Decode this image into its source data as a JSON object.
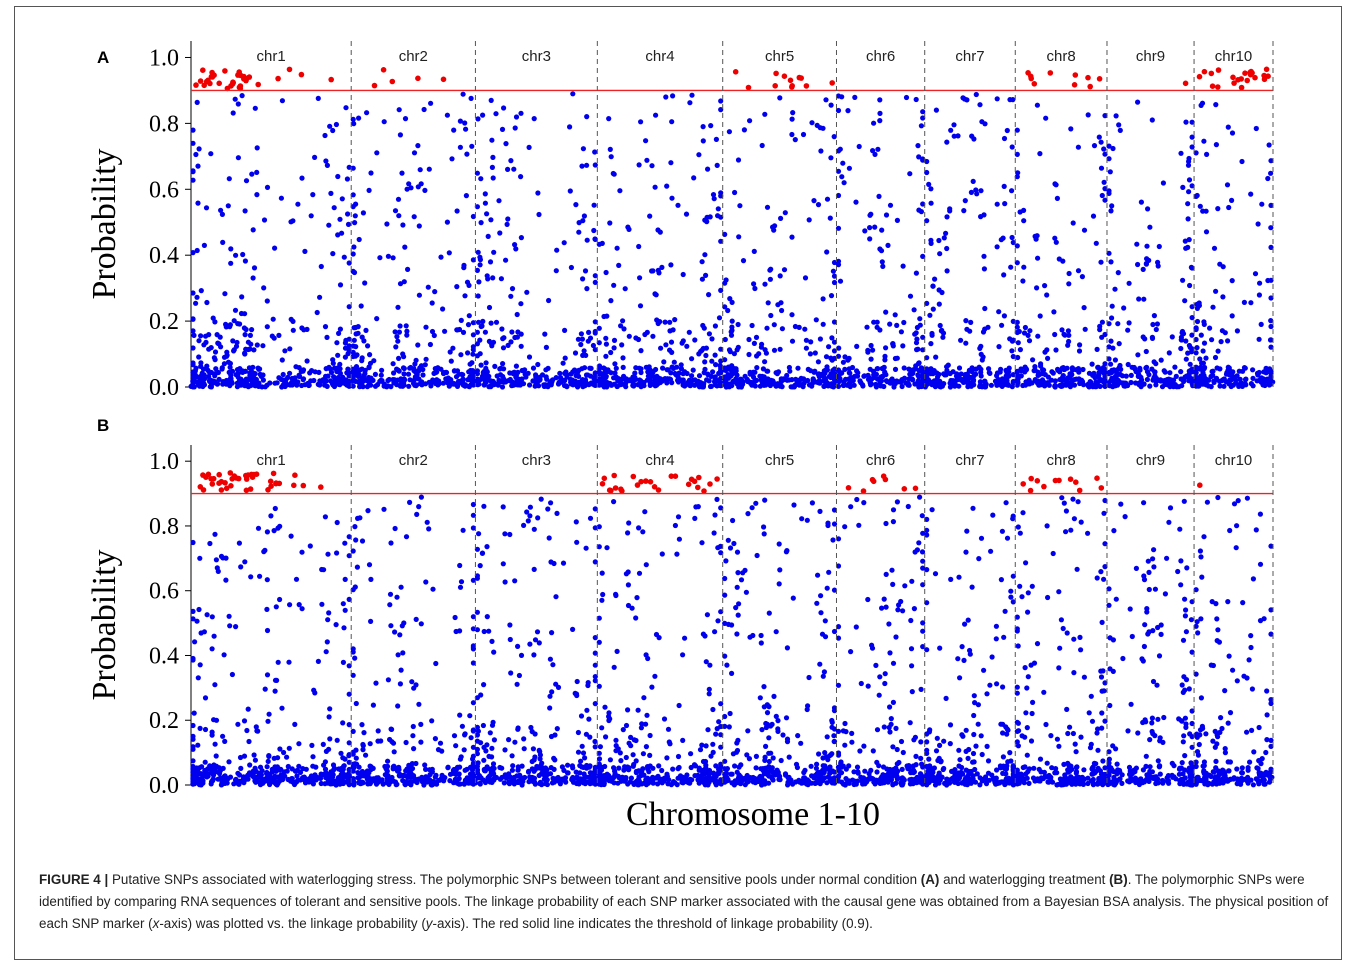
{
  "chart_data": [
    {
      "type": "scatter",
      "panel": "A",
      "xlabel": "",
      "ylabel": "Probability",
      "ylim": [
        0.0,
        1.0
      ],
      "yticks": [
        "0.0",
        "0.2",
        "0.4",
        "0.6",
        "0.8",
        "1.0"
      ],
      "threshold": 0.9,
      "chromosomes": [
        "chr1",
        "chr2",
        "chr3",
        "chr4",
        "chr5",
        "chr6",
        "chr7",
        "chr8",
        "chr9",
        "chr10"
      ],
      "chromosome_relative_lengths": [
        1.38,
        1.07,
        1.05,
        1.08,
        0.98,
        0.76,
        0.78,
        0.79,
        0.75,
        0.68
      ],
      "red_points_above_threshold": {
        "chr1": 35,
        "chr2": 5,
        "chr3": 0,
        "chr4": 0,
        "chr5": 12,
        "chr6": 0,
        "chr7": 0,
        "chr8": 10,
        "chr9": 1,
        "chr10": 22
      },
      "series": [
        {
          "name": "",
          "color": "#0000ee",
          "description_values": "probability < 0.9, dense near 0"
        },
        {
          "name": "",
          "color": "#ee0000",
          "description_values": "probability >= 0.9"
        }
      ]
    },
    {
      "type": "scatter",
      "panel": "B",
      "xlabel": "Chromosome 1-10",
      "ylabel": "Probability",
      "ylim": [
        0.0,
        1.0
      ],
      "yticks": [
        "0.0",
        "0.2",
        "0.4",
        "0.6",
        "0.8",
        "1.0"
      ],
      "threshold": 0.9,
      "chromosomes": [
        "chr1",
        "chr2",
        "chr3",
        "chr4",
        "chr5",
        "chr6",
        "chr7",
        "chr8",
        "chr9",
        "chr10"
      ],
      "chromosome_relative_lengths": [
        1.38,
        1.07,
        1.05,
        1.08,
        0.98,
        0.76,
        0.78,
        0.79,
        0.75,
        0.68
      ],
      "red_points_above_threshold": {
        "chr1": 40,
        "chr2": 0,
        "chr3": 0,
        "chr4": 25,
        "chr5": 0,
        "chr6": 8,
        "chr7": 0,
        "chr8": 12,
        "chr9": 0,
        "chr10": 1
      },
      "series": [
        {
          "name": "",
          "color": "#0000ee"
        },
        {
          "name": "",
          "color": "#ee0000"
        }
      ]
    }
  ],
  "colors": {
    "snp_below": "#0000ee",
    "snp_above": "#ee0000",
    "threshold_line": "#ee2222",
    "divider": "#555555"
  },
  "figure": {
    "panel_a_letter": "A",
    "panel_b_letter": "B",
    "xlabel": "Chromosome 1-10",
    "ylabel": "Probability"
  },
  "caption": {
    "label": "FIGURE 4 |",
    "text1": " Putative SNPs associated with waterlogging stress. The polymorphic SNPs between tolerant and sensitive pools under normal condition ",
    "ref_a": "(A)",
    "text2": " and waterlogging treatment ",
    "ref_b": "(B)",
    "text3": ". The polymorphic SNPs were identified by comparing RNA sequences of tolerant and sensitive pools. The linkage probability of each SNP marker associated with the causal gene was obtained from a Bayesian BSA analysis. The physical position of each SNP marker (",
    "x_italic": "x",
    "text4": "-axis) was plotted vs. the linkage probability (",
    "y_italic": "y",
    "text5": "-axis). The red solid line indicates the threshold of linkage probability (0.9)."
  }
}
